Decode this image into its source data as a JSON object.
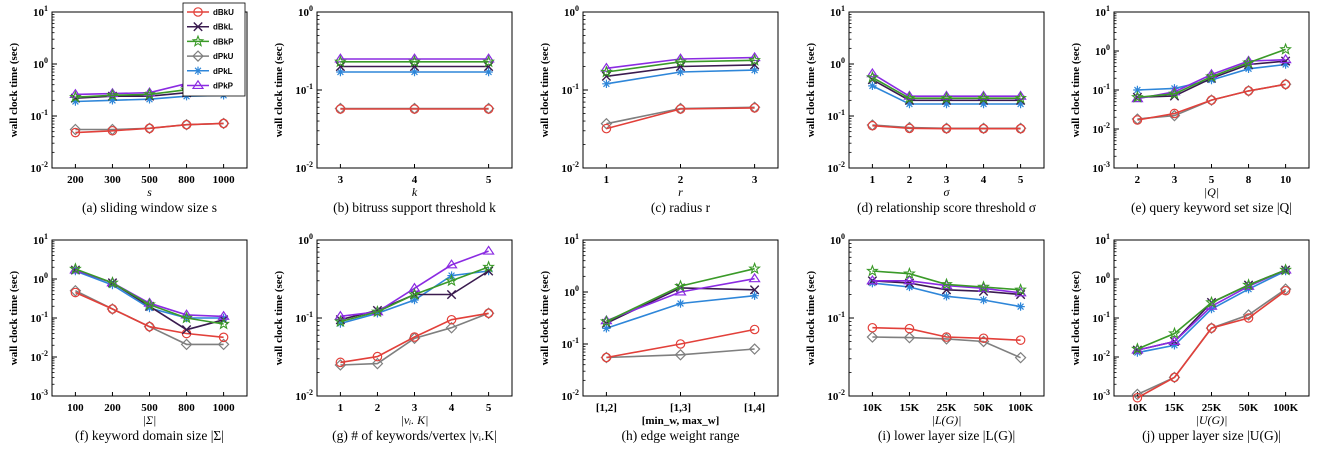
{
  "legend": [
    {
      "name": "dBkU",
      "color": "#e2403a",
      "marker": "circle"
    },
    {
      "name": "dBkL",
      "color": "#3a1b4f",
      "marker": "x"
    },
    {
      "name": "dBkP",
      "color": "#3a9a28",
      "marker": "star"
    },
    {
      "name": "dPkU",
      "color": "#7f7f7f",
      "marker": "diamond"
    },
    {
      "name": "dPkL",
      "color": "#2e86d9",
      "marker": "asterisk"
    },
    {
      "name": "dPkP",
      "color": "#8b2be2",
      "marker": "triangle"
    }
  ],
  "chart_data": [
    {
      "type": "line",
      "id": "a",
      "caption": "(a)  sliding window size s",
      "xlabel": "s",
      "ylabel": "wall clock time (sec)",
      "yscale": "log",
      "ylim": [
        0.01,
        10
      ],
      "yticks": [
        "10^-2",
        "10^-1",
        "10^0",
        "10^1"
      ],
      "categories": [
        "200",
        "300",
        "500",
        "800",
        "1000"
      ],
      "series": [
        {
          "name": "dBkU",
          "values": [
            0.048,
            0.052,
            0.058,
            0.068,
            0.072
          ]
        },
        {
          "name": "dBkL",
          "values": [
            0.22,
            0.24,
            0.24,
            0.28,
            0.3
          ]
        },
        {
          "name": "dBkP",
          "values": [
            0.23,
            0.25,
            0.26,
            0.32,
            0.34
          ]
        },
        {
          "name": "dPkU",
          "values": [
            0.055,
            0.055,
            0.058,
            0.068,
            0.072
          ]
        },
        {
          "name": "dPkL",
          "values": [
            0.19,
            0.2,
            0.21,
            0.24,
            0.25
          ]
        },
        {
          "name": "dPkP",
          "values": [
            0.26,
            0.27,
            0.28,
            0.42,
            0.44
          ]
        }
      ]
    },
    {
      "type": "line",
      "id": "b",
      "caption": "(b)  bitruss support threshold k",
      "xlabel": "k",
      "ylabel": "wall clock time (sec)",
      "yscale": "log",
      "ylim": [
        0.01,
        1
      ],
      "yticks": [
        "10^-2",
        "10^-1",
        "10^0"
      ],
      "categories": [
        "3",
        "4",
        "5"
      ],
      "series": [
        {
          "name": "dBkU",
          "values": [
            0.057,
            0.057,
            0.057
          ]
        },
        {
          "name": "dBkL",
          "values": [
            0.2,
            0.2,
            0.2
          ]
        },
        {
          "name": "dBkP",
          "values": [
            0.23,
            0.23,
            0.23
          ]
        },
        {
          "name": "dPkU",
          "values": [
            0.058,
            0.058,
            0.058
          ]
        },
        {
          "name": "dPkL",
          "values": [
            0.17,
            0.17,
            0.17
          ]
        },
        {
          "name": "dPkP",
          "values": [
            0.25,
            0.25,
            0.25
          ]
        }
      ]
    },
    {
      "type": "line",
      "id": "c",
      "caption": "(c)  radius r",
      "xlabel": "r",
      "ylabel": "wall clock time (sec)",
      "yscale": "log",
      "ylim": [
        0.01,
        1
      ],
      "yticks": [
        "10^-2",
        "10^-1",
        "10^0"
      ],
      "categories": [
        "1",
        "2",
        "3"
      ],
      "series": [
        {
          "name": "dBkU",
          "values": [
            0.032,
            0.057,
            0.059
          ]
        },
        {
          "name": "dBkL",
          "values": [
            0.15,
            0.2,
            0.21
          ]
        },
        {
          "name": "dBkP",
          "values": [
            0.17,
            0.23,
            0.24
          ]
        },
        {
          "name": "dPkU",
          "values": [
            0.037,
            0.058,
            0.06
          ]
        },
        {
          "name": "dPkL",
          "values": [
            0.12,
            0.17,
            0.18
          ]
        },
        {
          "name": "dPkP",
          "values": [
            0.19,
            0.25,
            0.26
          ]
        }
      ]
    },
    {
      "type": "line",
      "id": "d",
      "caption": "(d)  relationship score threshold σ",
      "xlabel": "σ",
      "ylabel": "wall clock time (sec)",
      "yscale": "log",
      "ylim": [
        0.01,
        10
      ],
      "yticks": [
        "10^-2",
        "10^-1",
        "10^0",
        "10^1"
      ],
      "categories": [
        "1",
        "2",
        "3",
        "4",
        "5"
      ],
      "series": [
        {
          "name": "dBkU",
          "values": [
            0.065,
            0.058,
            0.057,
            0.057,
            0.057
          ]
        },
        {
          "name": "dBkL",
          "values": [
            0.5,
            0.2,
            0.2,
            0.2,
            0.2
          ]
        },
        {
          "name": "dBkP",
          "values": [
            0.55,
            0.22,
            0.22,
            0.22,
            0.22
          ]
        },
        {
          "name": "dPkU",
          "values": [
            0.067,
            0.06,
            0.058,
            0.058,
            0.058
          ]
        },
        {
          "name": "dPkL",
          "values": [
            0.38,
            0.17,
            0.17,
            0.17,
            0.17
          ]
        },
        {
          "name": "dPkP",
          "values": [
            0.65,
            0.24,
            0.24,
            0.24,
            0.24
          ]
        }
      ]
    },
    {
      "type": "line",
      "id": "e",
      "caption": "(e)  query keyword set size |Q|",
      "xlabel": "|Q|",
      "ylabel": "wall clock time (sec)",
      "yscale": "log",
      "ylim": [
        0.001,
        10
      ],
      "yticks": [
        "10^-3",
        "10^-2",
        "10^-1",
        "10^0",
        "10^1"
      ],
      "categories": [
        "2",
        "3",
        "5",
        "8",
        "10"
      ],
      "series": [
        {
          "name": "dBkU",
          "values": [
            0.017,
            0.025,
            0.055,
            0.095,
            0.14
          ]
        },
        {
          "name": "dBkL",
          "values": [
            0.065,
            0.07,
            0.2,
            0.45,
            0.55
          ]
        },
        {
          "name": "dBkP",
          "values": [
            0.065,
            0.08,
            0.22,
            0.5,
            1.1
          ]
        },
        {
          "name": "dPkU",
          "values": [
            0.018,
            0.022,
            0.055,
            0.095,
            0.14
          ]
        },
        {
          "name": "dPkL",
          "values": [
            0.1,
            0.11,
            0.18,
            0.35,
            0.45
          ]
        },
        {
          "name": "dPkP",
          "values": [
            0.06,
            0.09,
            0.25,
            0.55,
            0.6
          ]
        }
      ]
    },
    {
      "type": "line",
      "id": "f",
      "caption": "(f)  keyword domain size |Σ|",
      "xlabel": "|Σ|",
      "ylabel": "wall clock time (sec)",
      "yscale": "log",
      "ylim": [
        0.001,
        10
      ],
      "yticks": [
        "10^-3",
        "10^-2",
        "10^-1",
        "10^0",
        "10^1"
      ],
      "categories": [
        "100",
        "200",
        "500",
        "800",
        "1000"
      ],
      "series": [
        {
          "name": "dBkU",
          "values": [
            0.45,
            0.17,
            0.06,
            0.04,
            0.032
          ]
        },
        {
          "name": "dBkL",
          "values": [
            1.7,
            0.8,
            0.2,
            0.05,
            0.09
          ]
        },
        {
          "name": "dBkP",
          "values": [
            1.8,
            0.8,
            0.22,
            0.1,
            0.07
          ]
        },
        {
          "name": "dPkU",
          "values": [
            0.5,
            0.17,
            0.06,
            0.021,
            0.021
          ]
        },
        {
          "name": "dPkL",
          "values": [
            1.6,
            0.7,
            0.18,
            0.1,
            0.1
          ]
        },
        {
          "name": "dPkP",
          "values": [
            1.7,
            0.8,
            0.24,
            0.12,
            0.11
          ]
        }
      ]
    },
    {
      "type": "line",
      "id": "g",
      "caption": "(g)  # of keywords/vertex |vᵢ.K|",
      "xlabel": "|vᵢ. K|",
      "ylabel": "wall clock time (sec)",
      "yscale": "log",
      "ylim": [
        0.01,
        1
      ],
      "yticks": [
        "10^-2",
        "10^-1",
        "10^0"
      ],
      "categories": [
        "1",
        "2",
        "3",
        "4",
        "5"
      ],
      "series": [
        {
          "name": "dBkU",
          "values": [
            0.027,
            0.032,
            0.057,
            0.095,
            0.115
          ]
        },
        {
          "name": "dBkL",
          "values": [
            0.095,
            0.125,
            0.2,
            0.2,
            0.4
          ]
        },
        {
          "name": "dBkP",
          "values": [
            0.09,
            0.12,
            0.2,
            0.3,
            0.45
          ]
        },
        {
          "name": "dPkU",
          "values": [
            0.025,
            0.026,
            0.055,
            0.075,
            0.115
          ]
        },
        {
          "name": "dPkL",
          "values": [
            0.085,
            0.115,
            0.17,
            0.35,
            0.4
          ]
        },
        {
          "name": "dPkP",
          "values": [
            0.105,
            0.12,
            0.24,
            0.48,
            0.72
          ]
        }
      ]
    },
    {
      "type": "line",
      "id": "h",
      "caption": "(h)  edge weight range",
      "xlabel": "[min_w, max_w]",
      "ylabel": "wall clock time (sec)",
      "yscale": "log",
      "ylim": [
        0.01,
        10
      ],
      "yticks": [
        "10^-2",
        "10^-1",
        "10^0",
        "10^1"
      ],
      "categories": [
        "[1,2]",
        "[1,3]",
        "[1,4]"
      ],
      "series": [
        {
          "name": "dBkU",
          "values": [
            0.055,
            0.1,
            0.19
          ]
        },
        {
          "name": "dBkL",
          "values": [
            0.25,
            1.2,
            1.1
          ]
        },
        {
          "name": "dBkP",
          "values": [
            0.27,
            1.3,
            2.8
          ]
        },
        {
          "name": "dPkU",
          "values": [
            0.055,
            0.062,
            0.08
          ]
        },
        {
          "name": "dPkL",
          "values": [
            0.2,
            0.6,
            0.85
          ]
        },
        {
          "name": "dPkP",
          "values": [
            0.28,
            1.0,
            1.8
          ]
        }
      ]
    },
    {
      "type": "line",
      "id": "i",
      "caption": "(i)  lower layer size |L(G)|",
      "xlabel": "|L(G)|",
      "ylabel": "wall clock time (sec)",
      "yscale": "log",
      "ylim": [
        0.01,
        1
      ],
      "yticks": [
        "10^-2",
        "10^-1",
        "10^0"
      ],
      "categories": [
        "10K",
        "15K",
        "25K",
        "50K",
        "100K"
      ],
      "series": [
        {
          "name": "dBkU",
          "values": [
            0.075,
            0.073,
            0.057,
            0.055,
            0.052
          ]
        },
        {
          "name": "dBkL",
          "values": [
            0.3,
            0.28,
            0.23,
            0.22,
            0.2
          ]
        },
        {
          "name": "dBkP",
          "values": [
            0.4,
            0.37,
            0.27,
            0.25,
            0.23
          ]
        },
        {
          "name": "dPkU",
          "values": [
            0.057,
            0.056,
            0.054,
            0.05,
            0.031
          ]
        },
        {
          "name": "dPkL",
          "values": [
            0.28,
            0.25,
            0.19,
            0.17,
            0.14
          ]
        },
        {
          "name": "dPkP",
          "values": [
            0.3,
            0.3,
            0.26,
            0.24,
            0.21
          ]
        }
      ]
    },
    {
      "type": "line",
      "id": "j",
      "caption": "(j)  upper layer size |U(G)|",
      "xlabel": "|U(G)|",
      "ylabel": "wall clock time (sec)",
      "yscale": "log",
      "ylim": [
        0.001,
        10
      ],
      "yticks": [
        "10^-3",
        "10^-2",
        "10^-1",
        "10^0",
        "10^1"
      ],
      "categories": [
        "10K",
        "15K",
        "25K",
        "50K",
        "100K"
      ],
      "series": [
        {
          "name": "dBkU",
          "values": [
            0.0009,
            0.003,
            0.055,
            0.1,
            0.5
          ]
        },
        {
          "name": "dBkL",
          "values": [
            0.015,
            0.025,
            0.25,
            0.7,
            1.7
          ]
        },
        {
          "name": "dBkP",
          "values": [
            0.016,
            0.04,
            0.25,
            0.7,
            1.7
          ]
        },
        {
          "name": "dPkU",
          "values": [
            0.0011,
            0.003,
            0.055,
            0.12,
            0.55
          ]
        },
        {
          "name": "dPkL",
          "values": [
            0.013,
            0.02,
            0.17,
            0.55,
            1.6
          ]
        },
        {
          "name": "dPkP",
          "values": [
            0.015,
            0.025,
            0.2,
            0.65,
            1.7
          ]
        }
      ]
    }
  ]
}
